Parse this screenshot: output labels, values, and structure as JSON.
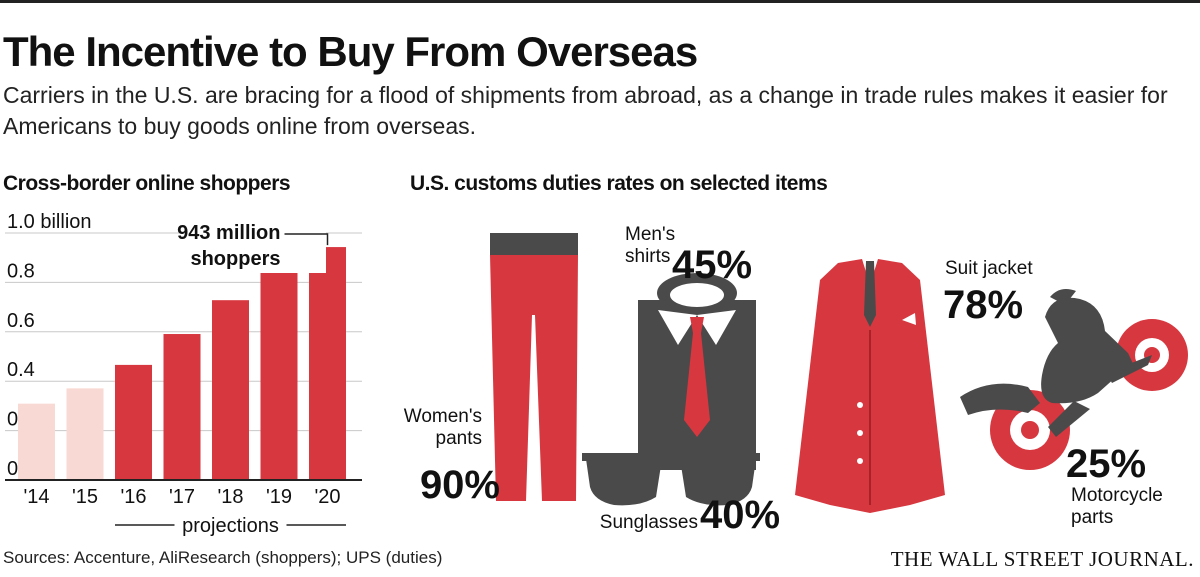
{
  "title": "The Incentive to Buy From Overseas",
  "subtitle": "Carriers in the U.S. are bracing for a flood of shipments from abroad, as a change in trade rules makes it easier for Americans to buy goods online from overseas.",
  "source": "Sources: Accenture, AliResearch (shoppers); UPS (duties)",
  "brand": "THE WALL STREET JOURNAL.",
  "colors": {
    "accent": "#d7373f",
    "light": "#f9d9d3",
    "dark": "#4a4a4a"
  },
  "chart_data": [
    {
      "type": "bar",
      "title": "Cross-border online shoppers",
      "categories": [
        "'14",
        "'15",
        "'16",
        "'17",
        "'18",
        "'19",
        "'20"
      ],
      "values": [
        0.309,
        0.371,
        0.466,
        0.591,
        0.728,
        0.863,
        0.943
      ],
      "projection_categories": [
        "'16",
        "'17",
        "'18",
        "'19",
        "'20"
      ],
      "projection_label": "projections",
      "unit": "billion",
      "yticks": [
        0,
        0.2,
        0.4,
        0.6,
        0.8,
        1.0
      ],
      "ytick_labels": [
        "0",
        "0.2",
        "0.4",
        "0.6",
        "0.8",
        "1.0 billion"
      ],
      "ylim": [
        0,
        1.0
      ],
      "annotation": {
        "line1": "943 million",
        "line2": "shoppers"
      }
    },
    {
      "type": "table",
      "title": "U.S. customs duties rates on selected items",
      "items": [
        {
          "label": "Women's pants",
          "label_lines": [
            "Women's",
            "pants"
          ],
          "value": 90,
          "display": "90%",
          "icon": "pants-icon"
        },
        {
          "label": "Men's shirts",
          "label_lines": [
            "Men's",
            "shirts"
          ],
          "value": 45,
          "display": "45%",
          "icon": "shirt-icon"
        },
        {
          "label": "Sunglasses",
          "label_lines": [
            "Sunglasses"
          ],
          "value": 40,
          "display": "40%",
          "icon": "sunglasses-icon"
        },
        {
          "label": "Suit jacket",
          "label_lines": [
            "Suit jacket"
          ],
          "value": 78,
          "display": "78%",
          "icon": "suit-jacket-icon"
        },
        {
          "label": "Motorcycle parts",
          "label_lines": [
            "Motorcycle",
            "parts"
          ],
          "value": 25,
          "display": "25%",
          "icon": "motorcycle-icon"
        }
      ]
    }
  ]
}
